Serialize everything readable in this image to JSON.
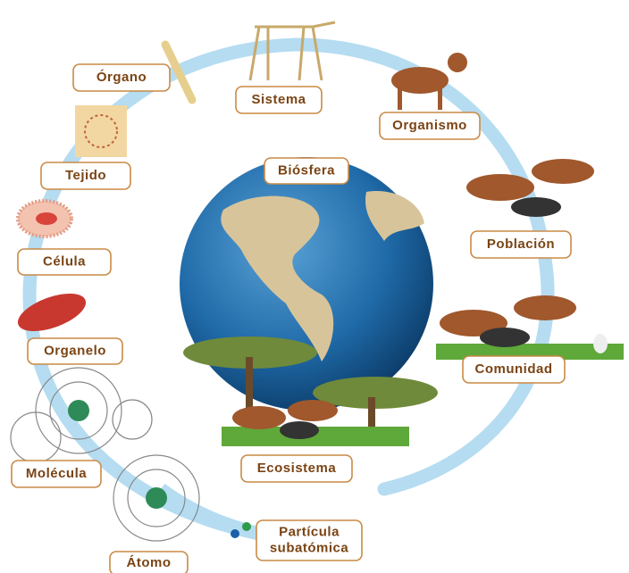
{
  "nodes": [
    {
      "lines": [
        "Órgano"
      ]
    },
    {
      "lines": [
        "Sistema"
      ]
    },
    {
      "lines": [
        "Organismo"
      ]
    },
    {
      "lines": [
        "Tejido"
      ]
    },
    {
      "lines": [
        "Biósfera"
      ]
    },
    {
      "lines": [
        "Población"
      ]
    },
    {
      "lines": [
        "Célula"
      ]
    },
    {
      "lines": [
        "Organelo"
      ]
    },
    {
      "lines": [
        "Comunidad"
      ]
    },
    {
      "lines": [
        "Molécula"
      ]
    },
    {
      "lines": [
        "Ecosistema"
      ]
    },
    {
      "lines": [
        "Átomo"
      ]
    },
    {
      "lines": [
        "Partícula",
        "subatómica"
      ]
    }
  ]
}
